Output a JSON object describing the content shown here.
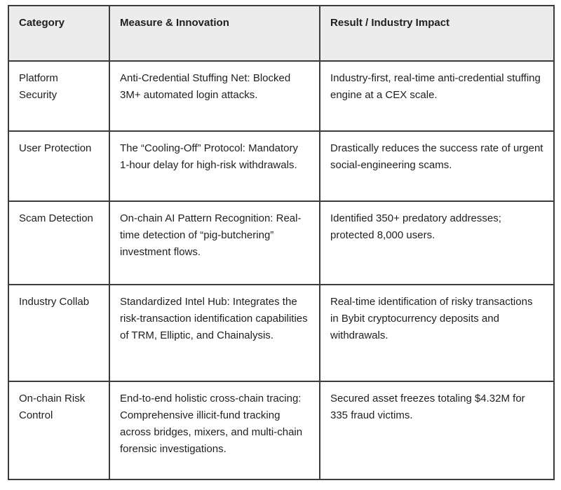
{
  "table": {
    "headers": {
      "category": "Category",
      "measure": "Measure & Innovation",
      "result": "Result / Industry Impact"
    },
    "rows": [
      {
        "category": "Platform Security",
        "measure": "Anti-Credential Stuffing Net: Blocked 3M+ automated login attacks.",
        "result": "Industry-first, real-time anti-credential stuffing engine at a CEX scale."
      },
      {
        "category": "User Protection",
        "measure": "The “Cooling-Off” Protocol: Mandatory 1-hour delay for high-risk withdrawals.",
        "result": "Drastically reduces the success rate of urgent social-engineering scams."
      },
      {
        "category": "Scam Detection",
        "measure": "On-chain AI Pattern Recognition: Real-time detection of “pig-butchering” investment flows.",
        "result": "Identified 350+ predatory addresses; protected 8,000 users."
      },
      {
        "category": "Industry Collab",
        "measure": "Standardized Intel Hub: Integrates the risk-transaction identification capabilities of TRM, Elliptic, and Chainalysis.",
        "result": "Real-time identification of risky transactions in Bybit cryptocurrency deposits and withdrawals."
      },
      {
        "category": "On-chain Risk Control",
        "measure": "End-to-end holistic cross-chain tracing:  Comprehensive illicit-fund tracking across bridges, mixers, and multi-chain forensic investigations.",
        "result": "Secured asset freezes totaling $4.32M for 335 fraud victims."
      }
    ]
  },
  "colors": {
    "border": "#3c3c3c",
    "header_background": "#ececec",
    "text": "#1f1f1f",
    "page_background": "#ffffff"
  }
}
